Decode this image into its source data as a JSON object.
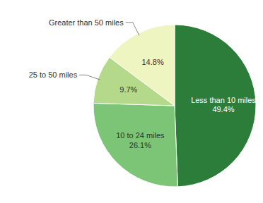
{
  "chart_data": {
    "type": "pie",
    "categories": [
      "Less than 10 miles",
      "10 to 24 miles",
      "25 to 50 miles",
      "Greater than 50 miles"
    ],
    "values": [
      49.4,
      26.1,
      9.7,
      14.8
    ],
    "value_labels": [
      "49.4%",
      "26.1%",
      "9.7%",
      "14.8%"
    ],
    "colors": [
      "#2d7d3a",
      "#7cc576",
      "#b5d98a",
      "#eef5c0"
    ],
    "data_labels": true
  }
}
